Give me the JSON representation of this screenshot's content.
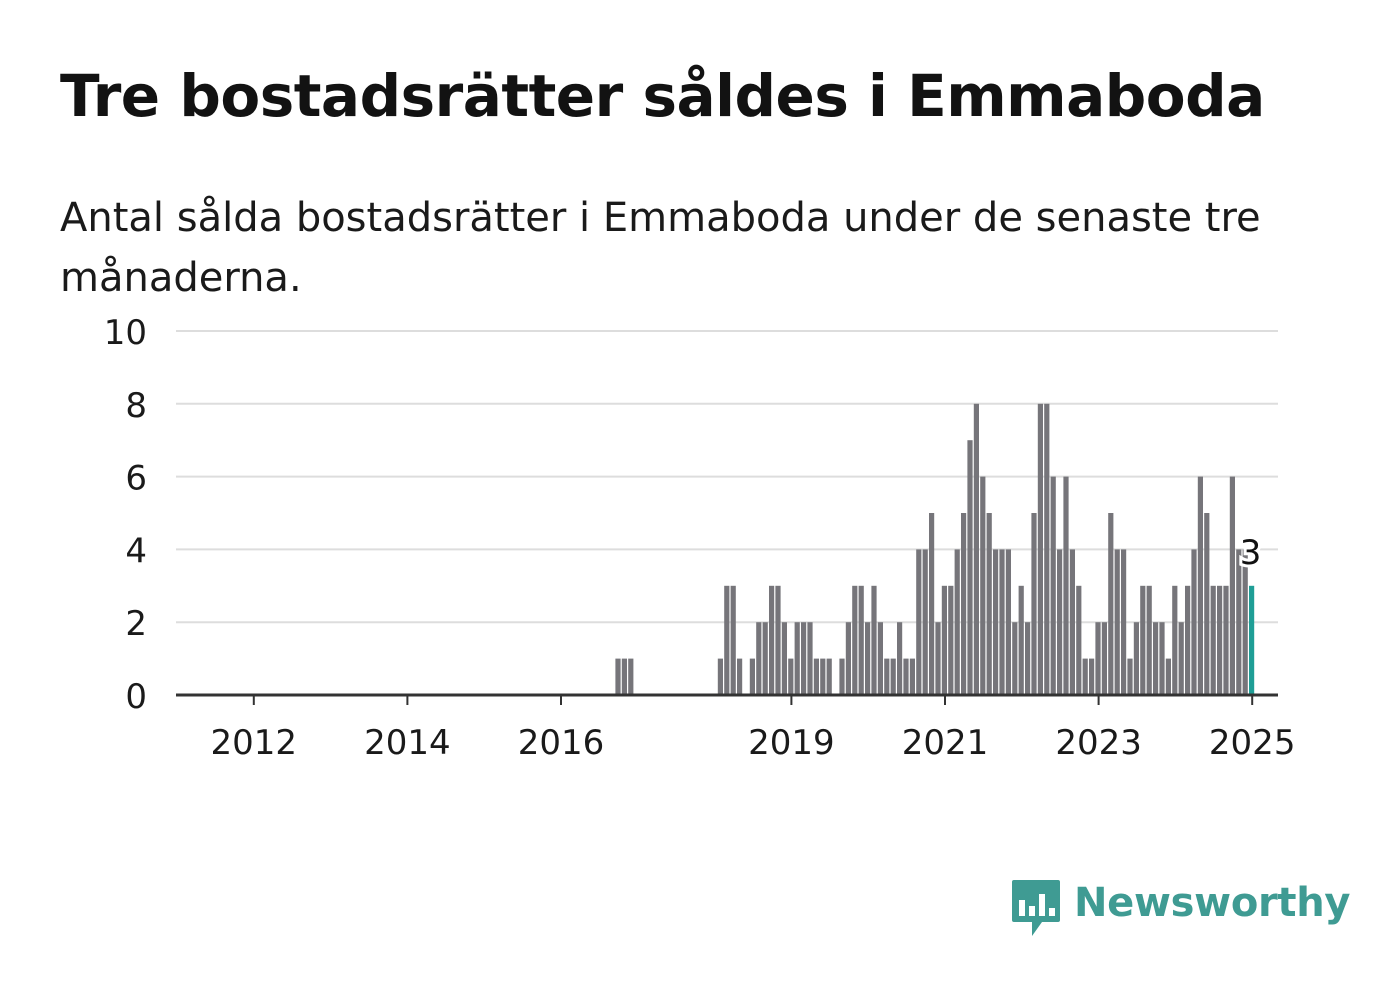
{
  "title": "Tre bostadsrätter såldes i Emmaboda",
  "subtitle": "Antal sålda bostadsrätter i Emmaboda under de senaste tre månaderna.",
  "brand": {
    "name": "Newsworthy",
    "color": "#3f9b93"
  },
  "colors": {
    "bar": "#76757a",
    "highlight": "#1f9e96",
    "grid": "#dddddd",
    "axis": "#333333",
    "text": "#1a1a1a"
  },
  "chart_data": {
    "type": "bar",
    "title": "Tre bostadsrätter såldes i Emmaboda",
    "subtitle": "Antal sålda bostadsrätter i Emmaboda under de senaste tre månaderna.",
    "xlabel": "",
    "ylabel": "",
    "ylim": [
      0,
      10
    ],
    "yticks": [
      0,
      2,
      4,
      6,
      8,
      10
    ],
    "xticks": [
      "2012",
      "2014",
      "2016",
      "2019",
      "2021",
      "2023",
      "2025"
    ],
    "x_start": "2011-04",
    "frequency": "monthly",
    "grid": true,
    "highlight_last": true,
    "last_label": "3",
    "values": [
      0,
      0,
      0,
      0,
      0,
      0,
      0,
      0,
      0,
      0,
      0,
      0,
      0,
      0,
      0,
      0,
      0,
      0,
      0,
      0,
      0,
      0,
      0,
      0,
      0,
      0,
      0,
      0,
      0,
      0,
      0,
      0,
      0,
      0,
      0,
      0,
      0,
      0,
      0,
      0,
      0,
      0,
      0,
      0,
      0,
      0,
      0,
      0,
      0,
      0,
      0,
      0,
      0,
      0,
      0,
      0,
      0,
      0,
      0,
      0,
      0,
      0,
      0,
      0,
      0,
      0,
      1,
      1,
      1,
      0,
      0,
      0,
      0,
      0,
      0,
      0,
      0,
      0,
      0,
      0,
      0,
      0,
      1,
      3,
      3,
      1,
      0,
      1,
      2,
      2,
      3,
      3,
      2,
      1,
      2,
      2,
      2,
      1,
      1,
      1,
      0,
      1,
      2,
      3,
      3,
      2,
      3,
      2,
      1,
      1,
      2,
      1,
      1,
      4,
      4,
      5,
      2,
      3,
      3,
      4,
      5,
      7,
      8,
      6,
      5,
      4,
      4,
      4,
      2,
      3,
      2,
      5,
      8,
      8,
      6,
      4,
      6,
      4,
      3,
      1,
      1,
      2,
      2,
      5,
      4,
      4,
      1,
      2,
      3,
      3,
      2,
      2,
      1,
      3,
      2,
      3,
      4,
      6,
      5,
      3,
      3,
      3,
      6,
      4,
      4,
      3
    ]
  }
}
